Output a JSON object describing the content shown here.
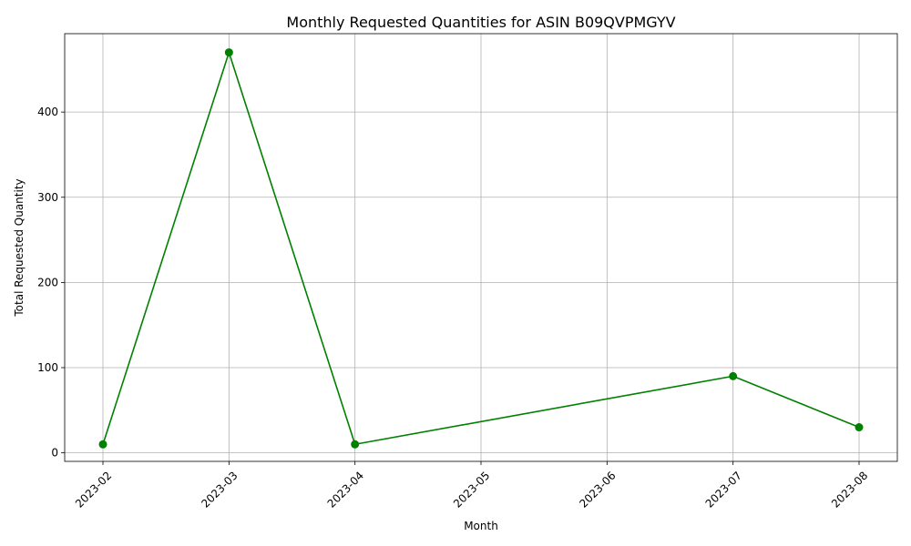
{
  "chart_data": {
    "type": "line",
    "title": "Monthly Requested Quantities for ASIN B09QVPMGYV",
    "xlabel": "Month",
    "ylabel": "Total Requested Quantity",
    "x_ticks": [
      "2023-02",
      "2023-03",
      "2023-04",
      "2023-05",
      "2023-06",
      "2023-07",
      "2023-08"
    ],
    "y_ticks": [
      0,
      100,
      200,
      300,
      400
    ],
    "ylim": [
      -10,
      492
    ],
    "grid": true,
    "series": [
      {
        "x": [
          "2023-02",
          "2023-03",
          "2023-04",
          "2023-07",
          "2023-08"
        ],
        "values": [
          10,
          470,
          10,
          90,
          30
        ],
        "color": "#008000",
        "marker": "circle"
      }
    ]
  }
}
